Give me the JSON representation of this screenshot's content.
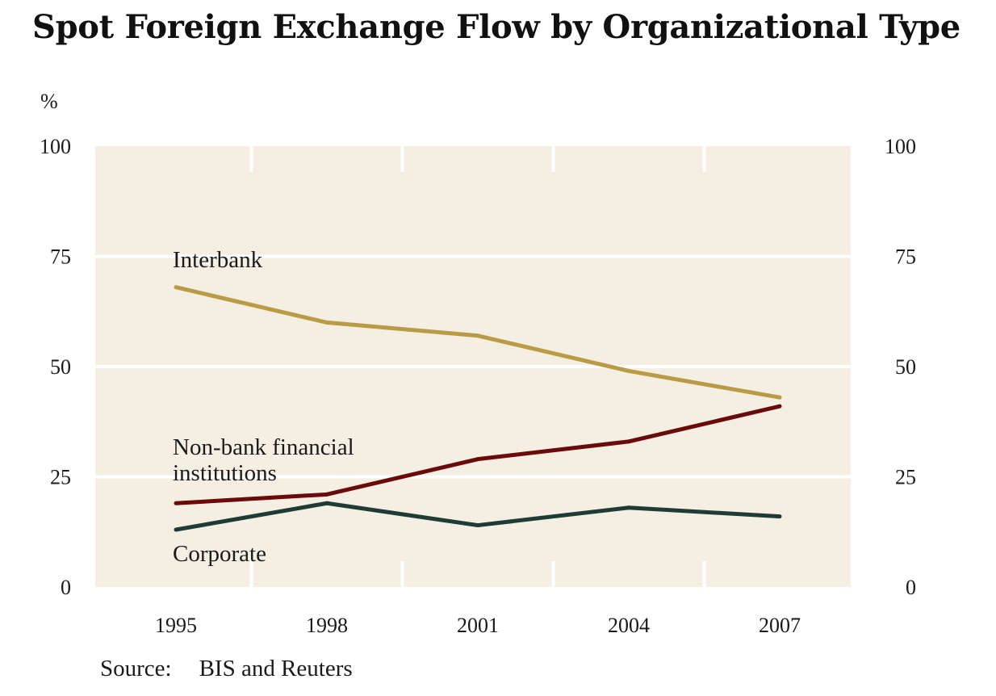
{
  "chart_data": {
    "type": "line",
    "title": "Spot Foreign Exchange Flow by Organizational Type",
    "y_unit_label": "%",
    "x": [
      "1995",
      "1998",
      "2001",
      "2004",
      "2007"
    ],
    "ylim": [
      0,
      100
    ],
    "y_ticks": [
      "0",
      "25",
      "50",
      "75",
      "100"
    ],
    "y_axis_right": true,
    "grid": true,
    "background_color": "#f4efe2",
    "series": [
      {
        "name": "Interbank",
        "values": [
          68,
          60,
          57,
          49,
          43
        ],
        "color": "#b99a45"
      },
      {
        "name": "Non-bank financial institutions",
        "label_lines": [
          "Non-bank financial",
          "institutions"
        ],
        "values": [
          19,
          21,
          29,
          33,
          41
        ],
        "color": "#6b0a0a"
      },
      {
        "name": "Corporate",
        "values": [
          13,
          19,
          14,
          18,
          16
        ],
        "color": "#1f3b35"
      }
    ],
    "source_label": "Source:",
    "source": "BIS and Reuters"
  }
}
